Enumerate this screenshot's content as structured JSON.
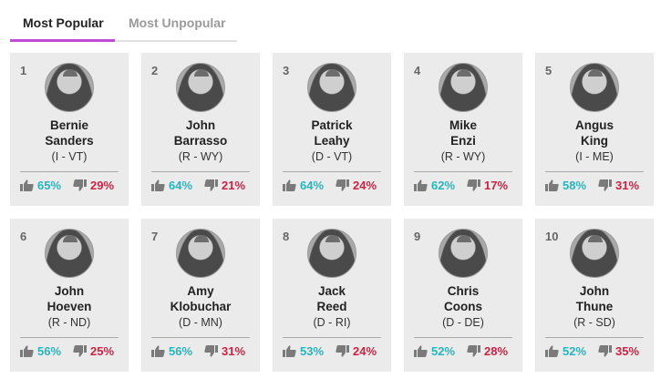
{
  "tabs": [
    {
      "label": "Most Popular",
      "active": true
    },
    {
      "label": "Most Unpopular",
      "active": false
    }
  ],
  "colors": {
    "approve": "#26b5bd",
    "disapprove": "#cc2244",
    "tab_accent": "#c14bd6",
    "card_bg": "#ebebeb"
  },
  "icons": {
    "approve": "thumbs-up-icon",
    "disapprove": "thumbs-down-icon",
    "photo": "avatar"
  },
  "senators": [
    {
      "rank": "1",
      "first": "Bernie",
      "last": "Sanders",
      "party": "(I - VT)",
      "approve": "65%",
      "disapprove": "29%"
    },
    {
      "rank": "2",
      "first": "John",
      "last": "Barrasso",
      "party": "(R - WY)",
      "approve": "64%",
      "disapprove": "21%"
    },
    {
      "rank": "3",
      "first": "Patrick",
      "last": "Leahy",
      "party": "(D - VT)",
      "approve": "64%",
      "disapprove": "24%"
    },
    {
      "rank": "4",
      "first": "Mike",
      "last": "Enzi",
      "party": "(R - WY)",
      "approve": "62%",
      "disapprove": "17%"
    },
    {
      "rank": "5",
      "first": "Angus",
      "last": "King",
      "party": "(I - ME)",
      "approve": "58%",
      "disapprove": "31%"
    },
    {
      "rank": "6",
      "first": "John",
      "last": "Hoeven",
      "party": "(R - ND)",
      "approve": "56%",
      "disapprove": "25%"
    },
    {
      "rank": "7",
      "first": "Amy",
      "last": "Klobuchar",
      "party": "(D - MN)",
      "approve": "56%",
      "disapprove": "31%"
    },
    {
      "rank": "8",
      "first": "Jack",
      "last": "Reed",
      "party": "(D - RI)",
      "approve": "53%",
      "disapprove": "24%"
    },
    {
      "rank": "9",
      "first": "Chris",
      "last": "Coons",
      "party": "(D - DE)",
      "approve": "52%",
      "disapprove": "28%"
    },
    {
      "rank": "10",
      "first": "John",
      "last": "Thune",
      "party": "(R - SD)",
      "approve": "52%",
      "disapprove": "35%"
    }
  ]
}
